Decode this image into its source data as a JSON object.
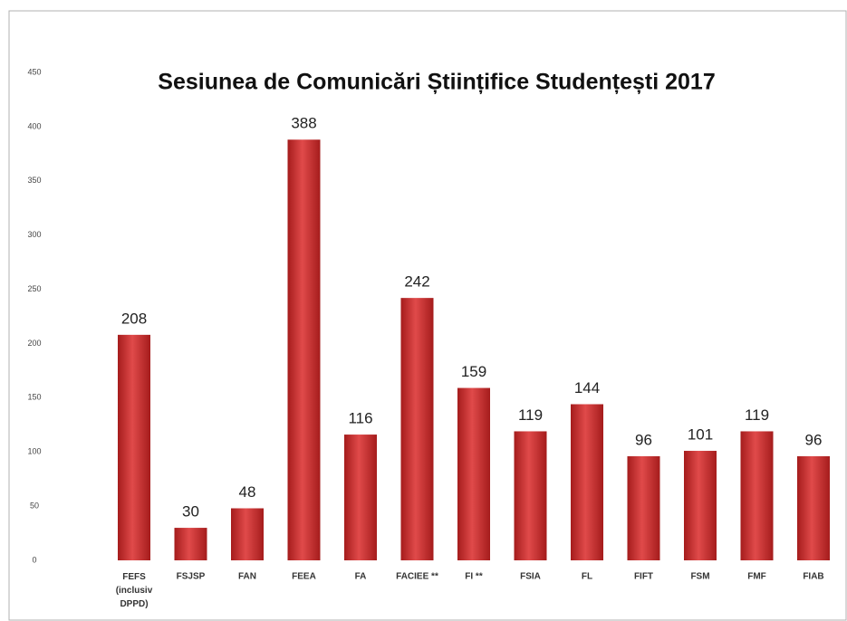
{
  "chart_data": {
    "type": "bar",
    "title": "Sesiunea de Comunicări Științifice Studențești  2017",
    "categories": [
      "FEFS (inclusiv DPPD)",
      "FSJSP",
      "FAN",
      "FEEA",
      "FA",
      "FACIEE **",
      "FI  **",
      "FSIA",
      "FL",
      "FIFT",
      "FSM",
      "FMF",
      "FIAB"
    ],
    "values": [
      208,
      30,
      48,
      388,
      116,
      242,
      159,
      119,
      144,
      96,
      101,
      119,
      96
    ],
    "color": "#d23a3a",
    "ylim": [
      0,
      450
    ],
    "yticks": [
      0,
      50,
      100,
      150,
      200,
      250,
      300,
      350,
      400,
      450
    ],
    "grid": false
  }
}
